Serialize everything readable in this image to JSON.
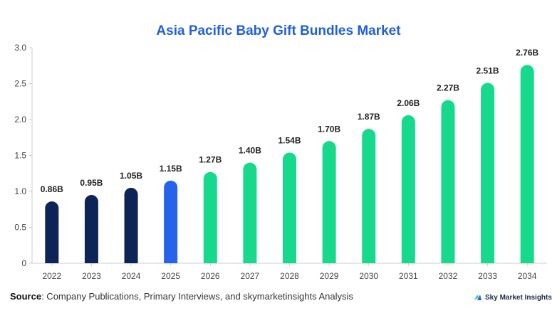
{
  "title": "Asia Pacific Baby Gift Bundles Market",
  "footer": {
    "source_label": "Source",
    "source_text": ": Company Publications, Primary Interviews, and skymarketinsights Analysis",
    "brand": "Sky Market Insights",
    "brand_icon": "sky-market-insights-logo-icon"
  },
  "colors": {
    "historical": "#0d2457",
    "base_year": "#2563eb",
    "forecast": "#17d98c",
    "title": "#1f5fe0"
  },
  "chart_data": {
    "type": "bar",
    "categories": [
      "2022",
      "2023",
      "2024",
      "2025",
      "2026",
      "2027",
      "2028",
      "2029",
      "2030",
      "2031",
      "2032",
      "2033",
      "2034"
    ],
    "values": [
      0.86,
      0.95,
      1.05,
      1.15,
      1.27,
      1.4,
      1.54,
      1.7,
      1.87,
      2.06,
      2.27,
      2.51,
      2.76
    ],
    "data_labels": [
      "0.86B",
      "0.95B",
      "1.05B",
      "1.15B",
      "1.27B",
      "1.40B",
      "1.54B",
      "1.70B",
      "1.87B",
      "2.06B",
      "2.27B",
      "2.51B",
      "2.76B"
    ],
    "bar_groups": [
      "historical",
      "historical",
      "historical",
      "base_year",
      "forecast",
      "forecast",
      "forecast",
      "forecast",
      "forecast",
      "forecast",
      "forecast",
      "forecast",
      "forecast"
    ],
    "y_ticks": [
      "0",
      "0.5",
      "1.0",
      "1.5",
      "2.0",
      "2.5",
      "3.0"
    ],
    "ylim": [
      0,
      3.0
    ],
    "title": "Asia Pacific Baby Gift Bundles Market",
    "xlabel": "",
    "ylabel": "",
    "grid": false,
    "legend": "none"
  }
}
